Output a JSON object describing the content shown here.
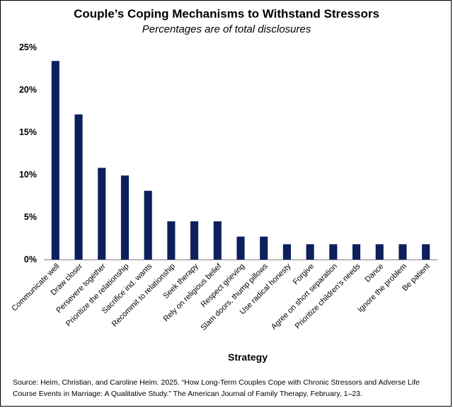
{
  "chart_data": {
    "type": "bar",
    "title": "Couple’s Coping Mechanisms to Withstand Stressors",
    "subtitle": "Percentages are of total disclosures",
    "xlabel": "Strategy",
    "ylabel": "",
    "ylim": [
      0,
      25
    ],
    "yticks": [
      "0%",
      "5%",
      "10%",
      "15%",
      "20%",
      "25%"
    ],
    "ytick_values": [
      0,
      5,
      10,
      15,
      20,
      25
    ],
    "grid": false,
    "bar_color": "#0d1f5c",
    "categories": [
      "Communicate well",
      "Draw closer",
      "Persevere together",
      "Prioritize the relationship",
      "Sacrifice ind. wants",
      "Recommit to relationship",
      "Seek therapy",
      "Rely on religious belief",
      "Respect grieving",
      "Slam doors, thump pillows",
      "Use radical honesty",
      "Forgive",
      "Agree on short separation",
      "Prioritize children’s needs",
      "Dance",
      "Ignore the problem",
      "Be patient"
    ],
    "values": [
      23.4,
      17.1,
      10.8,
      9.9,
      8.1,
      4.5,
      4.5,
      4.5,
      2.7,
      2.7,
      1.8,
      1.8,
      1.8,
      1.8,
      1.8,
      1.8,
      1.8
    ]
  },
  "source_line1": "Source: Heim, Christian, and Caroline Heim. 2025. “How Long-Term Couples Cope with Chronic Stressors and Adverse Life",
  "source_line2": "Course Events in Marriage: A Qualitative Study.” The American Journal of Family Therapy, February, 1–23."
}
